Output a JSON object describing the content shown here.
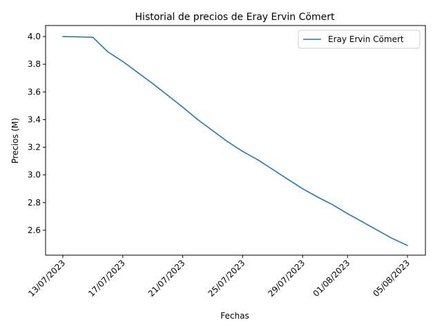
{
  "chart_data": {
    "type": "line",
    "title": "Historial de precios de Eray Ervin Cömert",
    "xlabel": "Fechas",
    "ylabel": "Precios (M)",
    "x": [
      "13/07/2023",
      "14/07/2023",
      "15/07/2023",
      "16/07/2023",
      "17/07/2023",
      "18/07/2023",
      "19/07/2023",
      "20/07/2023",
      "21/07/2023",
      "22/07/2023",
      "23/07/2023",
      "24/07/2023",
      "25/07/2023",
      "26/07/2023",
      "27/07/2023",
      "28/07/2023",
      "29/07/2023",
      "30/07/2023",
      "31/07/2023",
      "01/08/2023",
      "02/08/2023",
      "03/08/2023",
      "04/08/2023",
      "05/08/2023"
    ],
    "series": [
      {
        "name": "Eray Ervin Cömert",
        "color": "#1f77b4",
        "values": [
          4.0,
          3.998,
          3.995,
          3.89,
          3.82,
          3.74,
          3.66,
          3.575,
          3.49,
          3.4,
          3.32,
          3.24,
          3.17,
          3.11,
          3.04,
          2.97,
          2.9,
          2.84,
          2.785,
          2.72,
          2.66,
          2.6,
          2.54,
          2.49
        ]
      }
    ],
    "xticks": [
      "13/07/2023",
      "17/07/2023",
      "21/07/2023",
      "25/07/2023",
      "29/07/2023",
      "01/08/2023",
      "05/08/2023"
    ],
    "yticks": [
      "2.6",
      "2.8",
      "3.0",
      "3.2",
      "3.4",
      "3.6",
      "3.8",
      "4.0"
    ],
    "ylim": [
      2.42,
      4.08
    ],
    "grid": false,
    "legend": "upper right"
  }
}
